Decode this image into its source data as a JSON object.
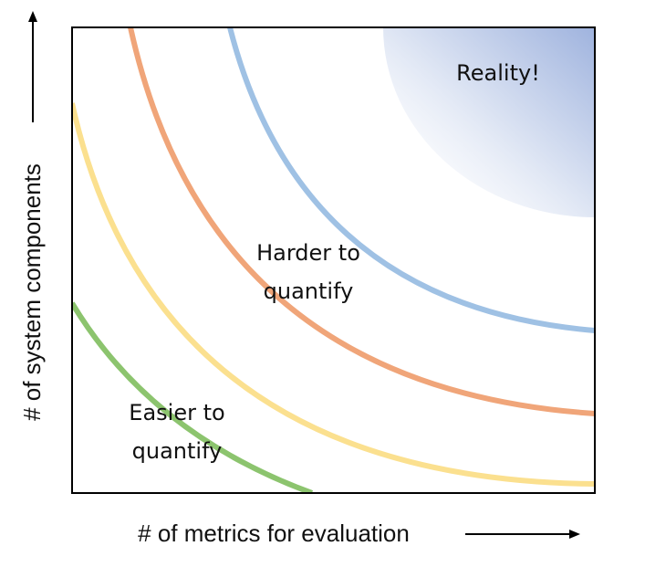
{
  "y_axis_label": "# of system components",
  "x_axis_label": "# of metrics for evaluation",
  "annotations": {
    "reality": "Reality!",
    "harder": [
      "Harder to",
      "quantify"
    ],
    "easier": [
      "Easier to",
      "quantify"
    ]
  }
}
